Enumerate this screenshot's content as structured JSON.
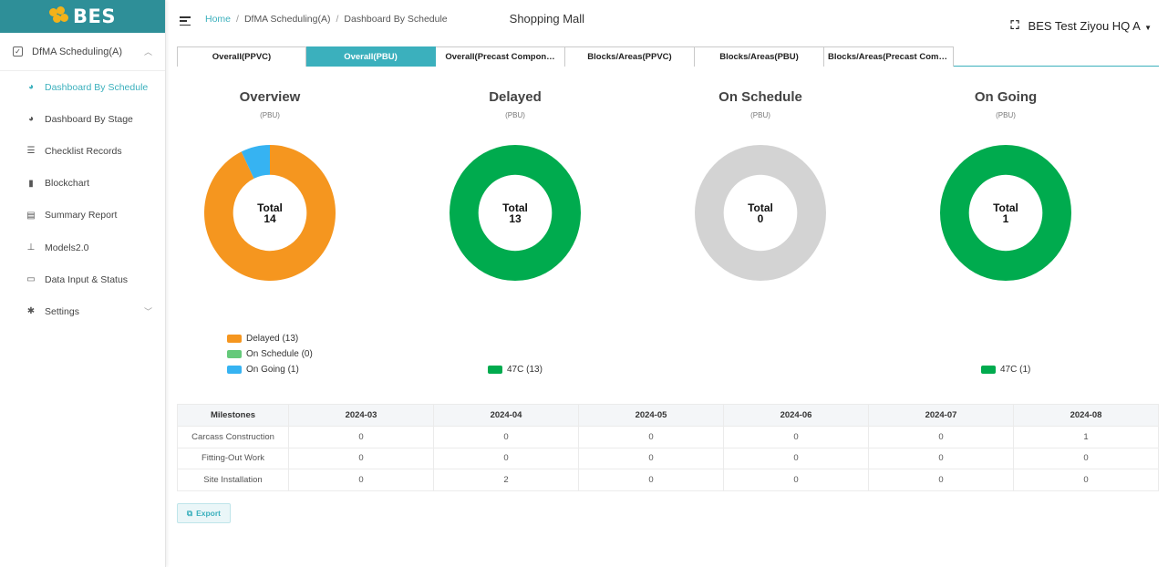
{
  "app": {
    "logo_text": "BES"
  },
  "sidebar": {
    "group": {
      "label": "DfMA Scheduling(A)",
      "icon": "checkbox-icon"
    },
    "items": [
      {
        "label": "Dashboard By Schedule",
        "icon": "dashboard-icon",
        "active": true
      },
      {
        "label": "Dashboard By Stage",
        "icon": "dashboard-icon"
      },
      {
        "label": "Checklist Records",
        "icon": "list-icon"
      },
      {
        "label": "Blockchart",
        "icon": "bar-chart-icon"
      },
      {
        "label": "Summary Report",
        "icon": "report-icon"
      },
      {
        "label": "Models2.0",
        "icon": "hierarchy-icon"
      },
      {
        "label": "Data Input & Status",
        "icon": "input-icon"
      },
      {
        "label": "Settings",
        "icon": "gear-icon"
      }
    ]
  },
  "header": {
    "breadcrumb": [
      "Home",
      "DfMA Scheduling(A)",
      "Dashboard By Schedule"
    ],
    "project": "Shopping Mall",
    "user": "BES Test Ziyou HQ A"
  },
  "tabs": [
    {
      "label": "Overall(PPVC)"
    },
    {
      "label": "Overall(PBU)",
      "active": true
    },
    {
      "label": "Overall(Precast Compon…"
    },
    {
      "label": "Blocks/Areas(PPVC)"
    },
    {
      "label": "Blocks/Areas(PBU)"
    },
    {
      "label": "Blocks/Areas(Precast Comp…"
    }
  ],
  "colors": {
    "accent": "#3bb0bd",
    "delayed": "#f5961f",
    "on_schedule": "#65c97a",
    "on_going": "#36b3f2",
    "c47": "#00ab4e",
    "empty": "#d3d3d3"
  },
  "charts": [
    {
      "title": "Overview",
      "subtitle": "(PBU)",
      "total_label": "Total",
      "total": "14",
      "segments": [
        {
          "value": 13,
          "color": "#f5961f"
        },
        {
          "value": 0,
          "color": "#65c97a"
        },
        {
          "value": 1,
          "color": "#36b3f2"
        }
      ]
    },
    {
      "title": "Delayed",
      "subtitle": "(PBU)",
      "total_label": "Total",
      "total": "13",
      "segments": [
        {
          "value": 13,
          "color": "#00ab4e"
        }
      ]
    },
    {
      "title": "On Schedule",
      "subtitle": "(PBU)",
      "total_label": "Total",
      "total": "0",
      "segments": []
    },
    {
      "title": "On Going",
      "subtitle": "(PBU)",
      "total_label": "Total",
      "total": "1",
      "segments": [
        {
          "value": 1,
          "color": "#00ab4e"
        }
      ]
    }
  ],
  "legends": {
    "overview": [
      "Delayed (13)",
      "On Schedule (0)",
      "On Going (1)"
    ],
    "delayed": [
      "47C (13)"
    ],
    "on_going": [
      "47C (1)"
    ]
  },
  "table": {
    "headers": [
      "Milestones",
      "2024-03",
      "2024-04",
      "2024-05",
      "2024-06",
      "2024-07",
      "2024-08"
    ],
    "rows": [
      [
        "Carcass Construction",
        "0",
        "0",
        "0",
        "0",
        "0",
        "1"
      ],
      [
        "Fitting-Out Work",
        "0",
        "0",
        "0",
        "0",
        "0",
        "0"
      ],
      [
        "Site Installation",
        "0",
        "2",
        "0",
        "0",
        "0",
        "0"
      ]
    ]
  },
  "export_label": "Export"
}
